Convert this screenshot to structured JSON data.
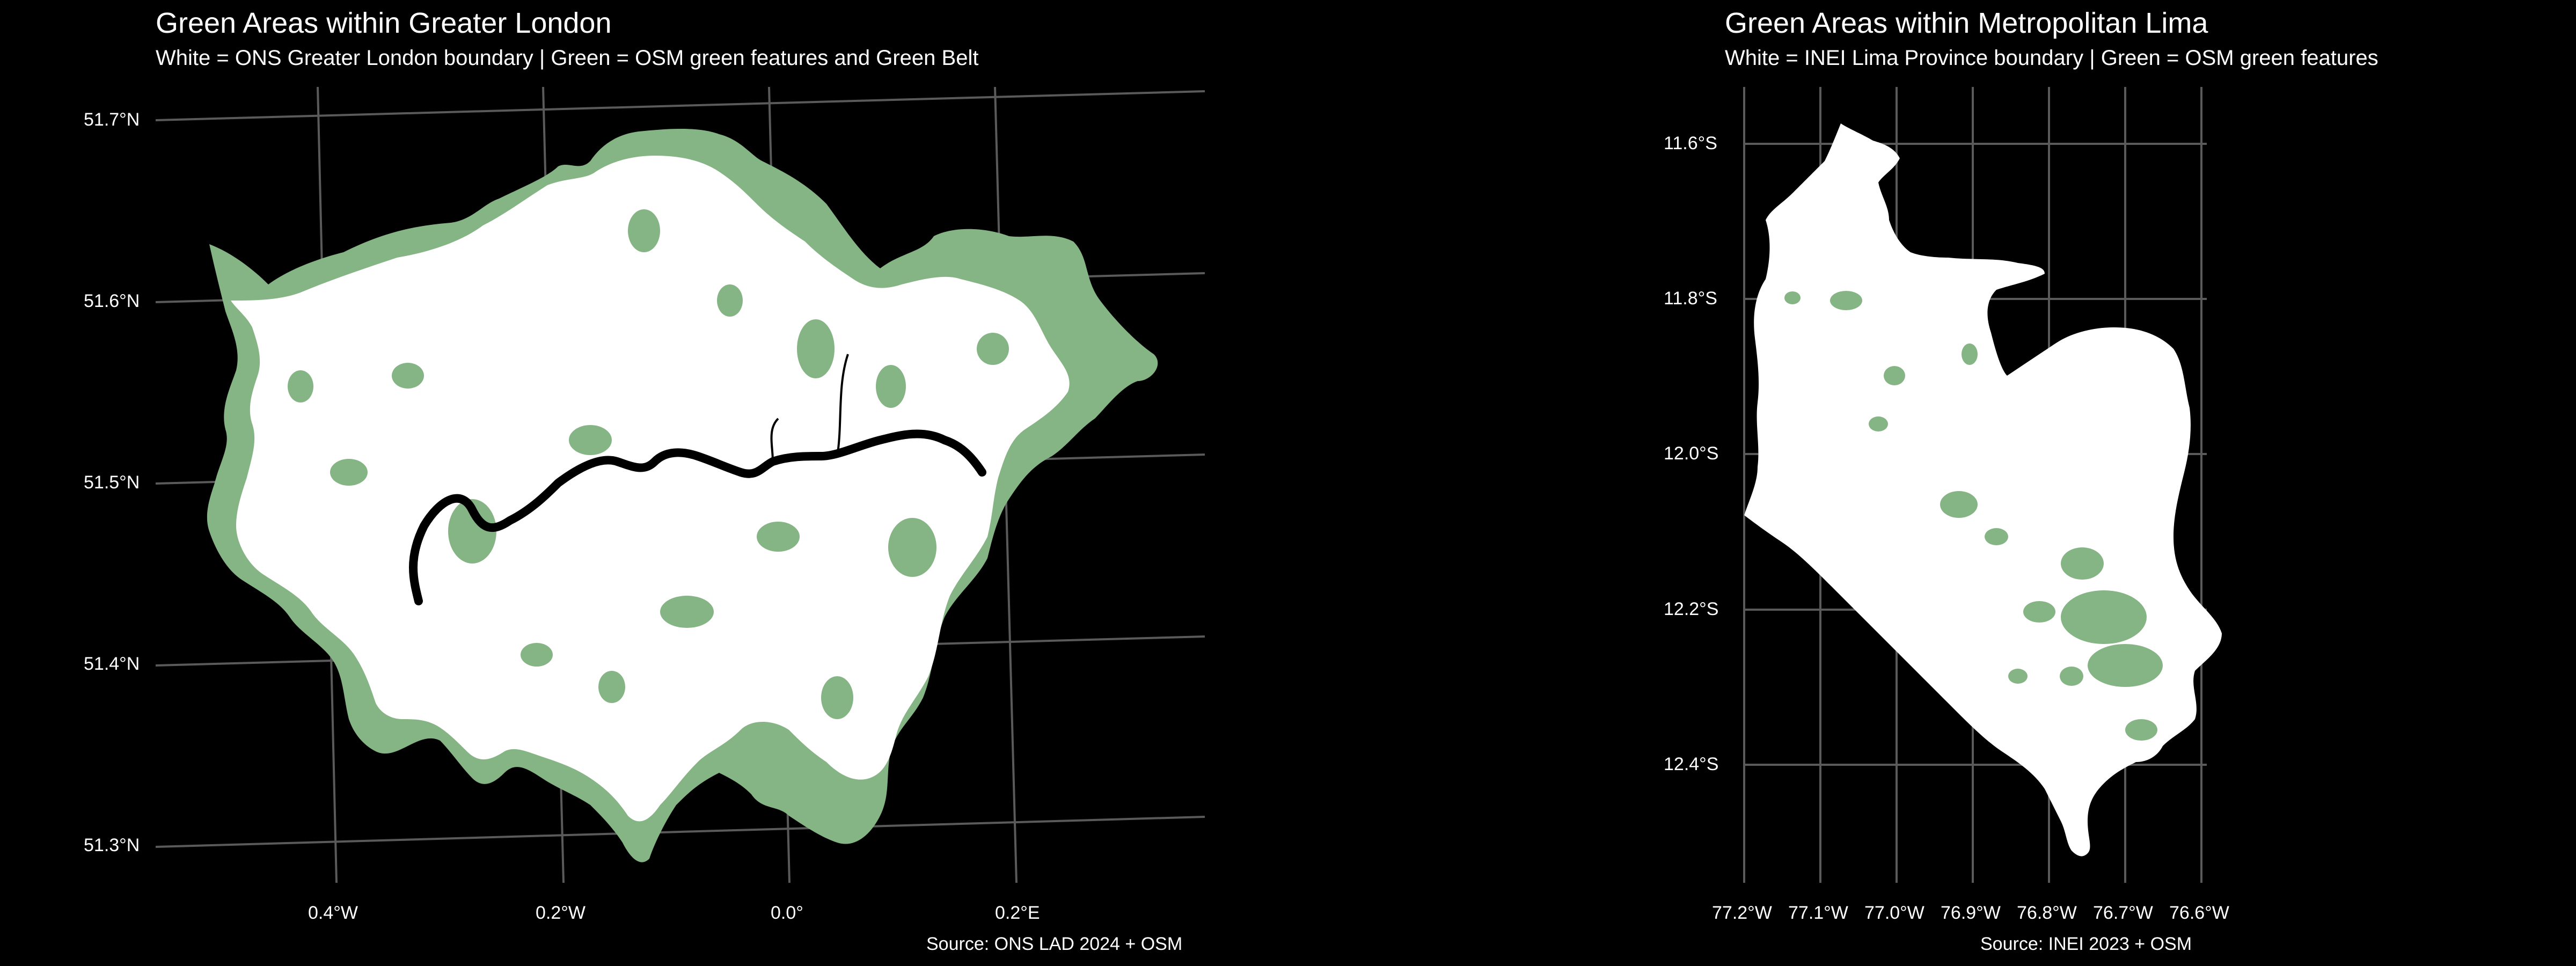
{
  "colors": {
    "background": "#000000",
    "boundary_fill": "#ffffff",
    "green_fill": "#86b585",
    "graticule": "#5a5a5a",
    "river": "#000000",
    "text": "#ffffff"
  },
  "maps": [
    {
      "id": "london",
      "title": "Green Areas within Greater London",
      "subtitle": "White = ONS Greater London boundary | Green = OSM green features and Green Belt",
      "caption": "Source: ONS LAD 2024 + OSM",
      "lat_ticks": [
        "51.7°N",
        "51.6°N",
        "51.5°N",
        "51.4°N",
        "51.3°N"
      ],
      "lon_ticks": [
        "0.4°W",
        "0.2°W",
        "0.0°",
        "0.2°E"
      ],
      "legend_items": [
        {
          "label": "White",
          "meaning": "ONS Greater London boundary"
        },
        {
          "label": "Green",
          "meaning": "OSM green features and Green Belt"
        }
      ]
    },
    {
      "id": "lima",
      "title": "Green Areas within Metropolitan Lima",
      "subtitle": "White = INEI Lima Province boundary | Green = OSM green features",
      "caption": "Source: INEI 2023 + OSM",
      "lat_ticks": [
        "11.6°S",
        "11.8°S",
        "12.0°S",
        "12.2°S",
        "12.4°S"
      ],
      "lon_ticks": [
        "77.2°W",
        "77.1°W",
        "77.0°W",
        "76.9°W",
        "76.8°W",
        "76.7°W",
        "76.6°W"
      ],
      "legend_items": [
        {
          "label": "White",
          "meaning": "INEI Lima Province boundary"
        },
        {
          "label": "Green",
          "meaning": "OSM green features"
        }
      ]
    }
  ]
}
